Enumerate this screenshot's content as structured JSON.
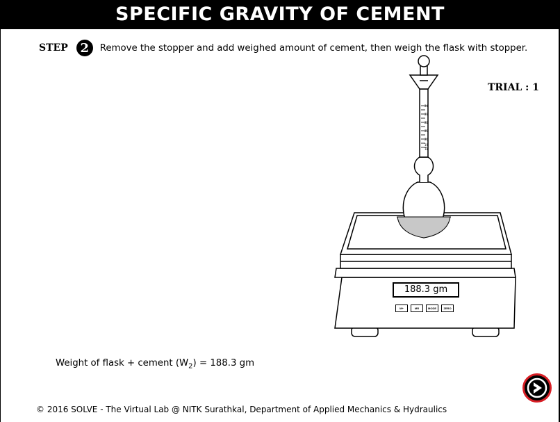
{
  "header": {
    "title": "SPECIFIC GRAVITY OF CEMENT"
  },
  "step": {
    "label": "STEP",
    "number": "2",
    "instruction": "Remove the stopper and add weighed amount of cement, then weigh the flask with stopper."
  },
  "trial": "TRIAL : 1",
  "scale": {
    "display": "188.3 gm",
    "buttons": [
      "M+",
      "MR",
      "MODE",
      "ZERO"
    ]
  },
  "measurement": {
    "label_prefix": "Weight of flask + cement (W",
    "subscript": "2",
    "label_suffix": ") = ",
    "value": "188.3 gm"
  },
  "flask": {
    "scale_marks": [
      "24",
      "23",
      "22",
      "21",
      "20",
      "19",
      "18"
    ]
  },
  "footer": "© 2016 SOLVE - The Virtual Lab @ NITK Surathkal, Department of Applied Mechanics & Hydraulics",
  "colors": {
    "header_bg": "#000000",
    "next_ring": "#d81f26",
    "cement": "#c8c8c8"
  }
}
